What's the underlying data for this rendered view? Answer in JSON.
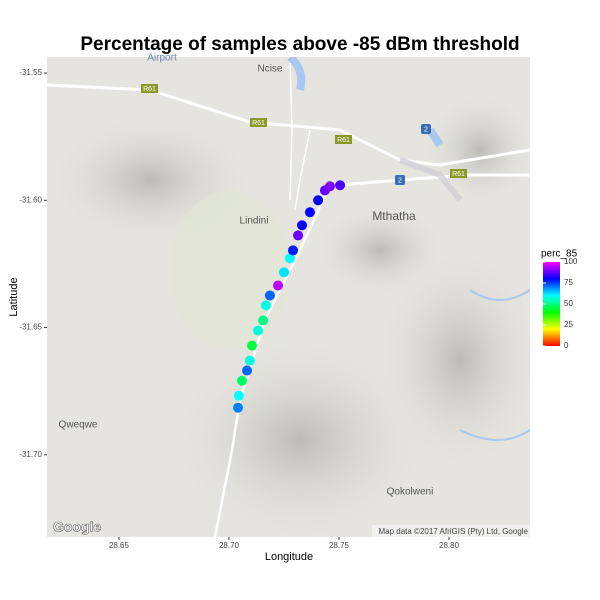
{
  "chart_data": {
    "type": "scatter",
    "title": "Percentage of samples above -85 dBm threshold",
    "x_label": "Longitude",
    "y_label": "Latitude",
    "xlim": [
      28.6173,
      28.8368
    ],
    "ylim": [
      -31.7323,
      -31.5437
    ],
    "xticks": [
      28.65,
      {
        "value": 28.7,
        "label": "28.70"
      },
      28.75,
      {
        "value": 28.8,
        "label": "28.80"
      }
    ],
    "yticks": [
      -31.55,
      {
        "value": -31.6,
        "label": "-31.60"
      },
      -31.65,
      {
        "value": -31.7,
        "label": "-31.70"
      }
    ],
    "x": [
      28.7041,
      28.7045,
      28.7059,
      28.7082,
      28.7095,
      28.7105,
      28.7132,
      28.7155,
      28.7168,
      28.7186,
      28.7223,
      28.725,
      28.7277,
      28.7291,
      28.7314,
      28.7332,
      28.7368,
      28.7405,
      28.7436,
      28.7459,
      28.7505
    ],
    "y": [
      -31.6815,
      -31.6768,
      -31.6709,
      -31.6669,
      -31.663,
      -31.6571,
      -31.6512,
      -31.6472,
      -31.6413,
      -31.6374,
      -31.6335,
      -31.6283,
      -31.6228,
      -31.6197,
      -31.6138,
      -31.6098,
      -31.6047,
      -31.6,
      -31.5961,
      -31.5945,
      -31.5941
    ],
    "values": [
      70,
      60,
      48,
      72,
      58,
      45,
      57,
      50,
      58,
      72,
      95,
      62,
      60,
      78,
      88,
      80,
      80,
      80,
      88,
      90,
      86
    ],
    "color_title": "perc_85",
    "color_lim": [
      0,
      100
    ],
    "color_ticks": [
      0,
      25,
      50,
      75,
      100
    ],
    "colors": [
      "#ff0000",
      "#ffff00",
      "#00ff00",
      "#00ffff",
      "#0000ff",
      "#ff00ff"
    ],
    "map_labels": [
      "Airport",
      "Ncise",
      "Lindini",
      "Mthatha",
      "Qweqwe",
      "Qokolweni"
    ],
    "road_shields": [
      "R61",
      "R61",
      "R61",
      "R61",
      "2",
      "2"
    ],
    "logo": "Google",
    "attribution": "Map data ©2017 AfriGIS (Pty) Ltd, Google"
  }
}
